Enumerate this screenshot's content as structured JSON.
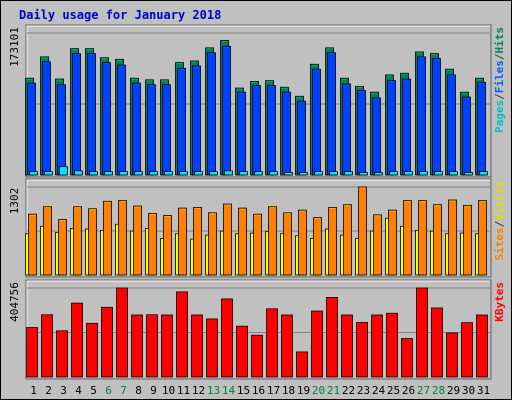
{
  "chart_data": {
    "type": "bar",
    "title": "Daily usage for January 2018",
    "categories": [
      "1",
      "2",
      "3",
      "4",
      "5",
      "6",
      "7",
      "8",
      "9",
      "10",
      "11",
      "12",
      "13",
      "14",
      "15",
      "16",
      "17",
      "18",
      "19",
      "20",
      "21",
      "22",
      "23",
      "24",
      "25",
      "26",
      "27",
      "28",
      "29",
      "30",
      "31"
    ],
    "weekend_days": [
      "6",
      "7",
      "13",
      "14",
      "20",
      "21",
      "27",
      "28"
    ],
    "colors": {
      "background": "#C0C0C0",
      "title": "#0000CC",
      "hits": "#00805C",
      "files": "#0040FF",
      "pages": "#00E0FF",
      "visits": "#FFFF00",
      "sites": "#FF8000",
      "kbytes": "#FF0000",
      "weekend_label": "#008040",
      "gridline": "#808080"
    },
    "panels": [
      {
        "id": "hits",
        "max_label": "173101",
        "ylim": [
          0,
          173101
        ],
        "legend": [
          {
            "text": "Pages",
            "color": "#00C0C0"
          },
          {
            "text": "/",
            "color": "#404040"
          },
          {
            "text": "Files",
            "color": "#0060FF"
          },
          {
            "text": "/",
            "color": "#404040"
          },
          {
            "text": "Hits",
            "color": "#00805C"
          }
        ],
        "series": [
          {
            "name": "Hits",
            "key": "hits",
            "values": [
              118000,
              144000,
              117000,
              154000,
              154000,
              143000,
              141000,
              118000,
              116000,
              116000,
              137000,
              139000,
              155000,
              164000,
              106000,
              114000,
              115000,
              107000,
              96000,
              135000,
              155000,
              118000,
              108000,
              101000,
              122000,
              124000,
              150000,
              148000,
              129000,
              101000,
              118000
            ]
          },
          {
            "name": "Files",
            "key": "files",
            "values": [
              112000,
              138000,
              110000,
              148000,
              148000,
              137000,
              134000,
              112000,
              110000,
              110000,
              130000,
              133000,
              149000,
              157000,
              101000,
              109000,
              109000,
              101000,
              90000,
              129000,
              149000,
              111000,
              103000,
              94000,
              115000,
              117000,
              144000,
              142000,
              122000,
              95000,
              113000
            ]
          },
          {
            "name": "Pages",
            "key": "pages",
            "values": [
              4000,
              4000,
              10000,
              5000,
              4000,
              4000,
              4000,
              4000,
              4000,
              4000,
              4000,
              4000,
              4000,
              5000,
              4000,
              4000,
              4000,
              3000,
              3000,
              4000,
              4000,
              4000,
              3000,
              3000,
              4000,
              4000,
              4000,
              4000,
              4000,
              3000,
              4000
            ]
          }
        ]
      },
      {
        "id": "visits",
        "max_label": "1302",
        "ylim": [
          0,
          1302
        ],
        "legend": [
          {
            "text": "Sites",
            "color": "#FF8000"
          },
          {
            "text": "/",
            "color": "#404040"
          },
          {
            "text": "Visits",
            "color": "#E0E000"
          }
        ],
        "series": [
          {
            "name": "Visits",
            "key": "visits",
            "values": [
              610,
              720,
              630,
              690,
              680,
              660,
              750,
              650,
              690,
              540,
              610,
              530,
              590,
              650,
              610,
              620,
              640,
              610,
              580,
              540,
              680,
              590,
              540,
              650,
              840,
              720,
              660,
              650,
              610,
              620,
              610
            ]
          },
          {
            "name": "Sites",
            "key": "sites",
            "values": [
              900,
              1010,
              820,
              1010,
              980,
              1090,
              1100,
              1020,
              910,
              880,
              990,
              1000,
              920,
              1050,
              990,
              900,
              1010,
              920,
              960,
              850,
              1000,
              1040,
              1302,
              890,
              960,
              1100,
              1100,
              1040,
              1110,
              1030,
              1100
            ]
          }
        ]
      },
      {
        "id": "kbytes",
        "max_label": "404756",
        "ylim": [
          0,
          404756
        ],
        "legend": [
          {
            "text": "KBytes",
            "color": "#FF0000"
          }
        ],
        "series": [
          {
            "name": "KBytes",
            "key": "kbytes",
            "values": [
              225000,
              283000,
              210000,
              336000,
              244000,
              317000,
              404756,
              282000,
              283000,
              282000,
              387000,
              282000,
              264000,
              355000,
              231000,
              190000,
              310000,
              282000,
              114000,
              300000,
              362000,
              282000,
              248000,
              282000,
              290000,
              175000,
              404756,
              314000,
              200000,
              247000,
              282000
            ]
          }
        ]
      }
    ]
  }
}
